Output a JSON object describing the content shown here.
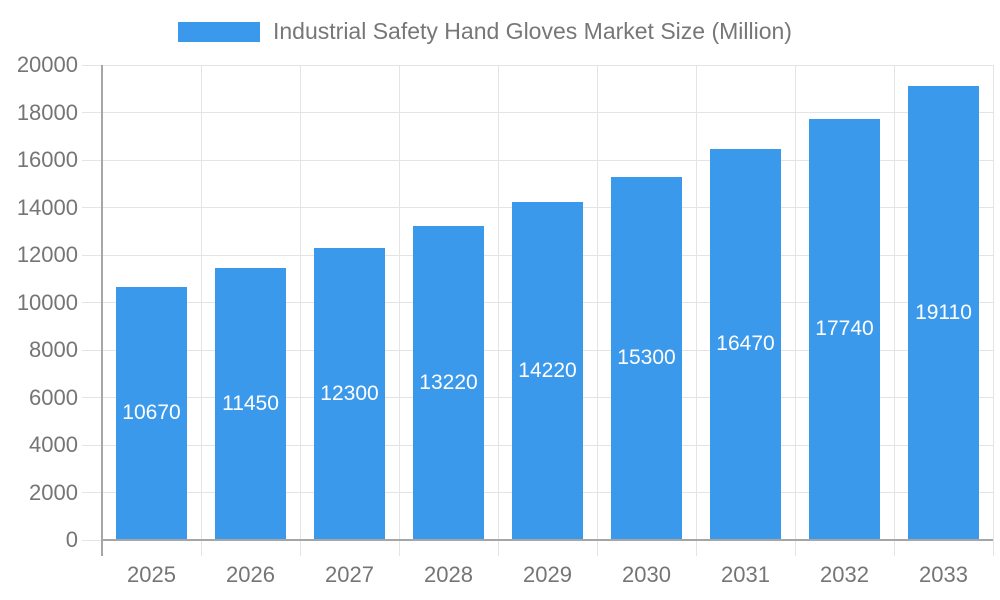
{
  "chart_data": {
    "type": "bar",
    "title": "Industrial Safety Hand Gloves Market Size (Million)",
    "categories": [
      "2025",
      "2026",
      "2027",
      "2028",
      "2029",
      "2030",
      "2031",
      "2032",
      "2033"
    ],
    "values": [
      10670,
      11450,
      12300,
      13220,
      14220,
      15300,
      16470,
      17740,
      19110
    ],
    "xlabel": "",
    "ylabel": "",
    "ylim": [
      0,
      20000
    ],
    "ytick_step": 2000,
    "grid": true,
    "legend_position": "top",
    "value_labels": "inside-center-white",
    "colors": {
      "bar": "#3B99EC",
      "grid": "#E4E4E4",
      "axis": "#A6A6A6",
      "tick_text": "#757575",
      "legend_text": "#777777",
      "value_label_text": "#FFFFFF",
      "background": "#FFFFFF"
    }
  }
}
